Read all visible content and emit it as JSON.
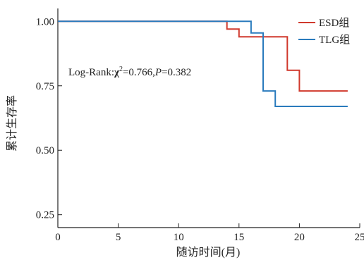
{
  "chart_data": {
    "type": "line",
    "step": true,
    "xlabel": "随访时间(月)",
    "ylabel": "累计生存率",
    "xlim": [
      0,
      25
    ],
    "ylim": [
      0.2,
      1.05
    ],
    "xticks": [
      0,
      5,
      10,
      15,
      20,
      25
    ],
    "xtick_labels": [
      "0",
      "5",
      "10",
      "15",
      "20",
      "25"
    ],
    "yticks": [
      0.25,
      0.5,
      0.75,
      1.0
    ],
    "ytick_labels": [
      "0.25",
      "0.50",
      "0.75",
      "1.00"
    ],
    "grid": false,
    "legend_position": "top-right",
    "annotation": {
      "prefix": "Log-Rank:",
      "chi": "χ",
      "sup": "2",
      "mid": "=0.766,",
      "p": "P",
      "suffix": "=0.382"
    },
    "series": [
      {
        "name": "ESD组",
        "color": "#d0392d",
        "x": [
          0,
          14,
          14,
          15,
          15,
          19,
          19,
          20,
          20,
          24
        ],
        "y": [
          1.0,
          1.0,
          0.97,
          0.97,
          0.94,
          0.94,
          0.81,
          0.81,
          0.73,
          0.73
        ]
      },
      {
        "name": "TLG组",
        "color": "#2a7bbd",
        "x": [
          0,
          16,
          16,
          17,
          17,
          18,
          18,
          24
        ],
        "y": [
          1.0,
          1.0,
          0.955,
          0.955,
          0.73,
          0.73,
          0.67,
          0.67
        ]
      }
    ]
  }
}
